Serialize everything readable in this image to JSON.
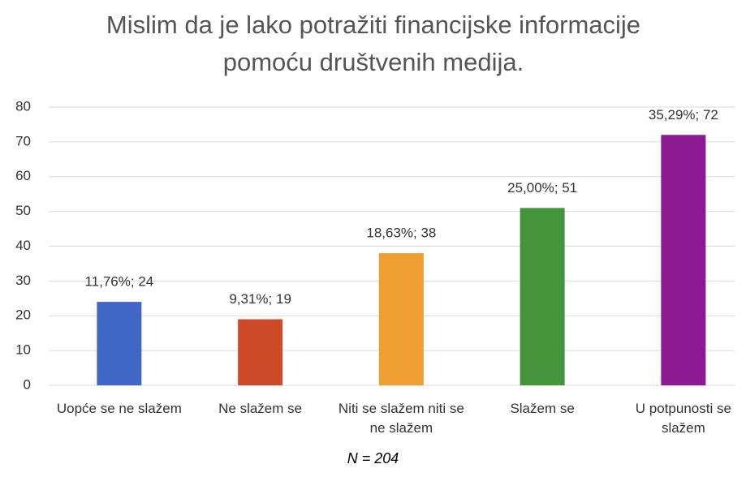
{
  "chart_data": {
    "type": "bar",
    "title": "Mislim da je lako potražiti financijske informacije pomoću društvenih medija.",
    "categories": [
      "Uopće se ne slažem",
      "Ne slažem se",
      "Niti se slažem niti se ne slažem",
      "Slažem se",
      "U potpunosti se slažem"
    ],
    "values": [
      24,
      19,
      38,
      51,
      72
    ],
    "value_labels": [
      "11,76%; 24",
      "9,31%; 19",
      "18,63%; 38",
      "25,00%; 51",
      "35,29%; 72"
    ],
    "colors": [
      "#4167c6",
      "#cc4a28",
      "#f0a033",
      "#43943a",
      "#8b1a93"
    ],
    "ylim": [
      0,
      80
    ],
    "yticks": [
      0,
      10,
      20,
      30,
      40,
      50,
      60,
      70,
      80
    ],
    "grid": true,
    "annotation": "N = 204"
  }
}
